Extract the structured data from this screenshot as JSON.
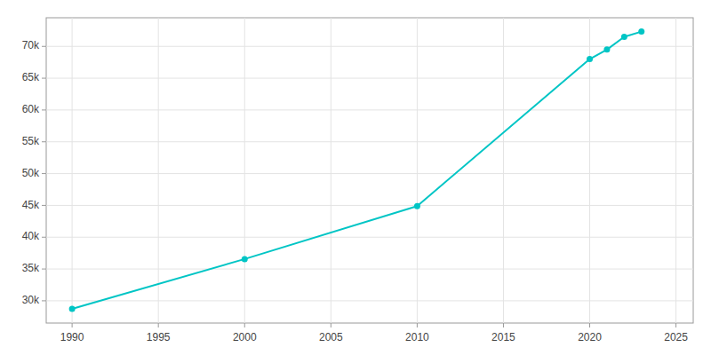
{
  "chart_data": {
    "type": "line",
    "x": [
      1990,
      2000,
      2010,
      2020,
      2021,
      2022,
      2023
    ],
    "values": [
      28743,
      36561,
      44894,
      67997,
      69500,
      71492,
      72323
    ],
    "color": "#00C5C5",
    "marker": "circle",
    "xlim": [
      1988.5,
      2026
    ],
    "ylim": [
      26500,
      74500
    ],
    "xticks": [
      1990,
      1995,
      2000,
      2005,
      2010,
      2015,
      2020,
      2025
    ],
    "yticks": [
      {
        "value": 30000,
        "label": "30k"
      },
      {
        "value": 35000,
        "label": "35k"
      },
      {
        "value": 40000,
        "label": "40k"
      },
      {
        "value": 45000,
        "label": "45k"
      },
      {
        "value": 50000,
        "label": "50k"
      },
      {
        "value": 55000,
        "label": "55k"
      },
      {
        "value": 60000,
        "label": "60k"
      },
      {
        "value": 65000,
        "label": "65k"
      },
      {
        "value": 70000,
        "label": "70k"
      }
    ],
    "grid": true
  }
}
